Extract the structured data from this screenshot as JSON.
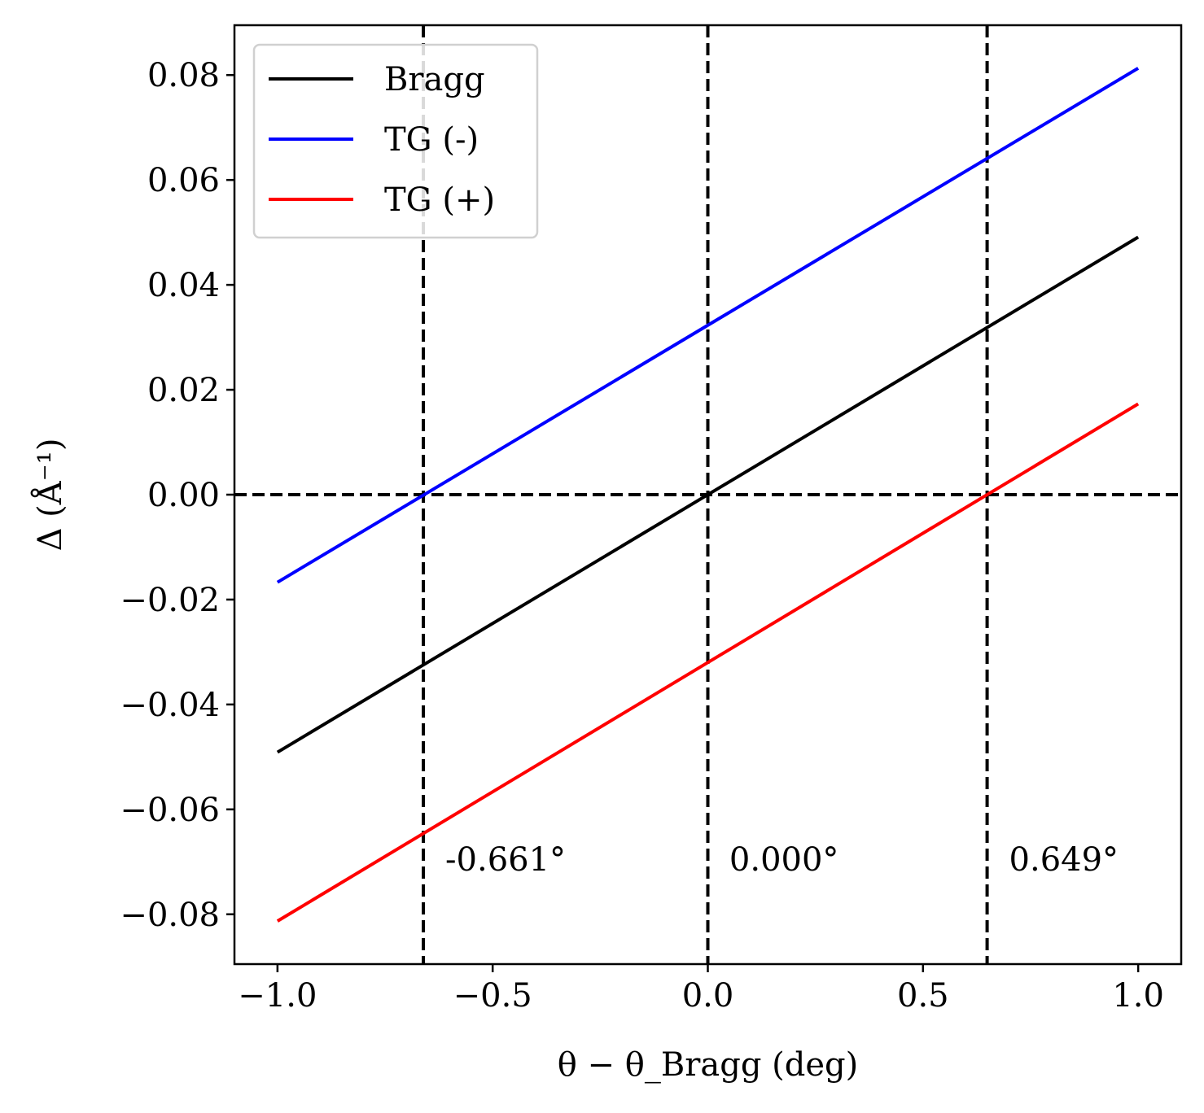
{
  "chart_data": {
    "type": "line",
    "title": "",
    "xlabel": "θ − θ_Bragg (deg)",
    "ylabel": "Δ (Å⁻¹)",
    "xlim": [
      -1.1,
      1.1
    ],
    "ylim": [
      -0.0895,
      0.0895
    ],
    "xticks": [
      -1.0,
      -0.5,
      0.0,
      0.5,
      1.0
    ],
    "xtick_labels": [
      "−1.0",
      "−0.5",
      "0.0",
      "0.5",
      "1.0"
    ],
    "yticks": [
      -0.08,
      -0.06,
      -0.04,
      -0.02,
      0.0,
      0.02,
      0.04,
      0.06,
      0.08
    ],
    "ytick_labels": [
      "−0.08",
      "−0.06",
      "−0.04",
      "−0.02",
      "0.00",
      "0.02",
      "0.04",
      "0.06",
      "0.08"
    ],
    "grid": false,
    "legend_position": "top-left",
    "series": [
      {
        "name": "Bragg",
        "color": "#000000",
        "x": [
          -1.0,
          1.0
        ],
        "y": [
          -0.0491,
          0.0491
        ]
      },
      {
        "name": "TG (-)",
        "color": "#0000ff",
        "x": [
          -1.0,
          1.0
        ],
        "y": [
          -0.0167,
          0.0813
        ]
      },
      {
        "name": "TG (+)",
        "color": "#ff0000",
        "x": [
          -1.0,
          1.0
        ],
        "y": [
          -0.0813,
          0.0173
        ]
      }
    ],
    "reference_lines": {
      "horizontal": [
        0.0
      ],
      "vertical": [
        -0.661,
        0.0,
        0.649
      ],
      "style": "dashed",
      "color": "#000000"
    },
    "annotations": [
      {
        "text": "-0.661°",
        "x": -0.61,
        "y": -0.0695
      },
      {
        "text": "0.000°",
        "x": 0.05,
        "y": -0.0695
      },
      {
        "text": "0.649°",
        "x": 0.7,
        "y": -0.0695
      }
    ]
  }
}
